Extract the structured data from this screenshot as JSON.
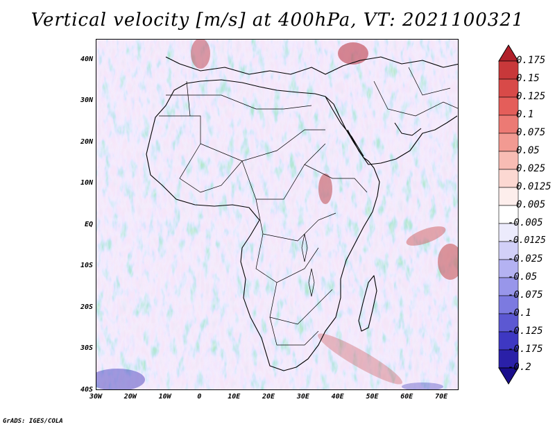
{
  "title": "Vertical velocity [m/s] at 400hPa, VT: 2021100321",
  "credit": "GrADS: IGES/COLA",
  "map": {
    "lat_labels": [
      "40N",
      "30N",
      "20N",
      "10N",
      "EQ",
      "10S",
      "20S",
      "30S",
      "40S"
    ],
    "lon_labels": [
      "30W",
      "20W",
      "10W",
      "0",
      "10E",
      "20E",
      "30E",
      "40E",
      "50E",
      "60E",
      "70E"
    ],
    "lon_range": [
      -30,
      75
    ],
    "lat_range": [
      -40,
      45
    ]
  },
  "colorbar": {
    "labels": [
      "0.175",
      "0.15",
      "0.125",
      "0.1",
      "0.075",
      "0.05",
      "0.025",
      "0.0125",
      "0.005",
      "-0.005",
      "-0.0125",
      "-0.025",
      "-0.05",
      "-0.075",
      "-0.1",
      "-0.125",
      "-0.175",
      "-0.2"
    ],
    "colors": [
      "#b0202a",
      "#c8383a",
      "#d84a48",
      "#e45e5a",
      "#ec7a74",
      "#f29a92",
      "#f8bcb4",
      "#fcd8d2",
      "#fdeeec",
      "#ffffff",
      "#ecebfc",
      "#d2d0f8",
      "#b4b2f2",
      "#9896ea",
      "#7c7ae0",
      "#5c58d2",
      "#3e38c2",
      "#2a20a8",
      "#1a0e8c"
    ]
  }
}
